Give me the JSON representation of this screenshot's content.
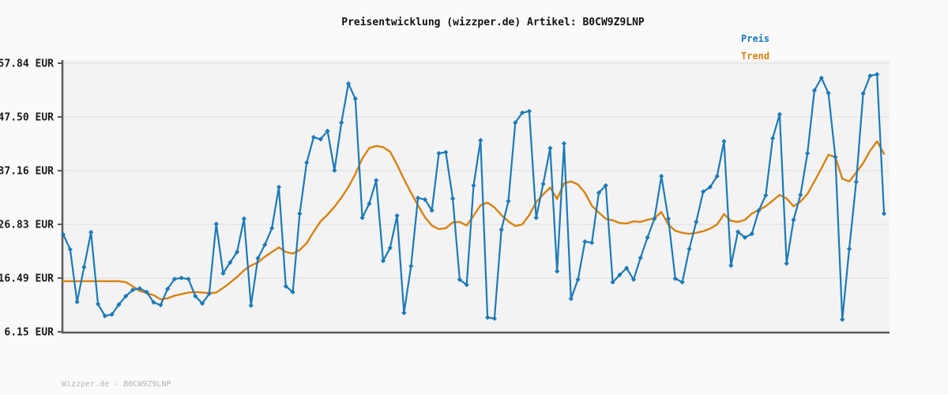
{
  "title": "Preisentwicklung (wizzper.de) Artikel: B0CW9Z9LNP",
  "legend": {
    "preis_label": "Preis",
    "trend_label": "Trend"
  },
  "footer": "Wizzper.de - B0CW9Z9LNP",
  "colors": {
    "preis": "#1b7ab9",
    "trend": "#d9820e",
    "plot_bg": "#f3f3f3",
    "page_bg": "#fafafa",
    "grid": "#e4e4e4",
    "axis": "#5a5a5a",
    "tick_label": "#1a1a1a",
    "footer_text": "#b5b5b5"
  },
  "chart_data": {
    "type": "line",
    "title": "Preisentwicklung (wizzper.de) Artikel: B0CW9Z9LNP",
    "xlabel": "",
    "ylabel": "",
    "x_axis": {
      "labels_visible": false,
      "points": 119
    },
    "y_axis": {
      "unit": "EUR",
      "tick_labels": [
        "57.84 EUR",
        "47.50 EUR",
        "37.16 EUR",
        "26.83 EUR",
        "16.49 EUR",
        "6.15 EUR"
      ],
      "tick_values": [
        57.84,
        47.5,
        37.16,
        26.83,
        16.49,
        6.15
      ],
      "range": [
        6.15,
        57.84
      ]
    },
    "grid": "horizontal",
    "legend_position": "top-right",
    "series": [
      {
        "name": "Preis",
        "color": "#1b7ab9",
        "marker": "diamond",
        "values": [
          24.9,
          22.0,
          11.9,
          18.6,
          25.3,
          11.5,
          9.2,
          9.5,
          11.4,
          13.0,
          14.2,
          14.5,
          13.8,
          11.8,
          11.3,
          14.4,
          16.3,
          16.5,
          16.3,
          13.0,
          11.6,
          13.5,
          26.9,
          17.4,
          19.5,
          21.5,
          27.9,
          11.2,
          20.3,
          22.9,
          26.1,
          34.0,
          14.9,
          13.8,
          28.9,
          38.7,
          43.6,
          43.2,
          44.8,
          37.2,
          46.4,
          53.9,
          51.0,
          28.1,
          30.8,
          35.3,
          19.8,
          22.3,
          28.5,
          9.8,
          18.8,
          31.9,
          31.6,
          29.5,
          40.5,
          40.7,
          31.8,
          16.2,
          15.2,
          34.3,
          43.0,
          8.9,
          8.7,
          25.8,
          31.3,
          46.4,
          48.3,
          48.6,
          28.1,
          34.6,
          41.5,
          17.8,
          42.4,
          12.5,
          16.2,
          23.5,
          23.3,
          32.9,
          34.3,
          15.7,
          17.1,
          18.4,
          16.2,
          20.4,
          24.3,
          27.9,
          36.1,
          27.9,
          16.4,
          15.7,
          22.1,
          27.3,
          33.1,
          34.0,
          36.1,
          42.8,
          18.9,
          25.4,
          24.3,
          25.0,
          29.5,
          32.4,
          43.4,
          48.0,
          19.3,
          27.7,
          32.5,
          40.5,
          52.6,
          55.0,
          52.1,
          39.8,
          8.5,
          22.1,
          35.0,
          52.0,
          55.4,
          55.7,
          28.9
        ]
      },
      {
        "name": "Trend",
        "color": "#d9820e",
        "marker": "none",
        "values": [
          15.9,
          15.9,
          15.9,
          15.9,
          15.9,
          15.9,
          15.9,
          15.9,
          15.9,
          15.7,
          14.9,
          14.0,
          13.6,
          13.2,
          12.4,
          12.6,
          13.1,
          13.4,
          13.7,
          13.8,
          13.7,
          13.6,
          13.7,
          14.6,
          15.6,
          16.7,
          18.0,
          18.9,
          19.5,
          20.6,
          21.5,
          22.4,
          21.5,
          21.2,
          21.9,
          23.2,
          25.4,
          27.4,
          28.7,
          30.2,
          32.0,
          34.0,
          36.5,
          39.5,
          41.5,
          41.9,
          41.7,
          40.8,
          38.3,
          35.5,
          32.9,
          30.5,
          28.2,
          26.6,
          25.9,
          26.1,
          27.2,
          27.3,
          26.6,
          28.5,
          30.5,
          31.0,
          30.1,
          28.6,
          27.4,
          26.5,
          26.8,
          28.6,
          31.1,
          32.6,
          33.9,
          31.7,
          34.7,
          35.1,
          34.5,
          32.9,
          30.4,
          29.1,
          27.9,
          27.6,
          27.1,
          27.0,
          27.4,
          27.3,
          27.7,
          28.0,
          29.2,
          26.8,
          25.6,
          25.2,
          25.0,
          25.2,
          25.5,
          26.0,
          26.8,
          28.8,
          27.5,
          27.3,
          27.7,
          28.9,
          29.6,
          30.3,
          31.4,
          32.5,
          31.8,
          30.3,
          31.2,
          32.7,
          35.1,
          37.6,
          40.2,
          39.8,
          35.6,
          35.1,
          36.8,
          38.6,
          41.0,
          42.8,
          40.4
        ]
      }
    ]
  }
}
